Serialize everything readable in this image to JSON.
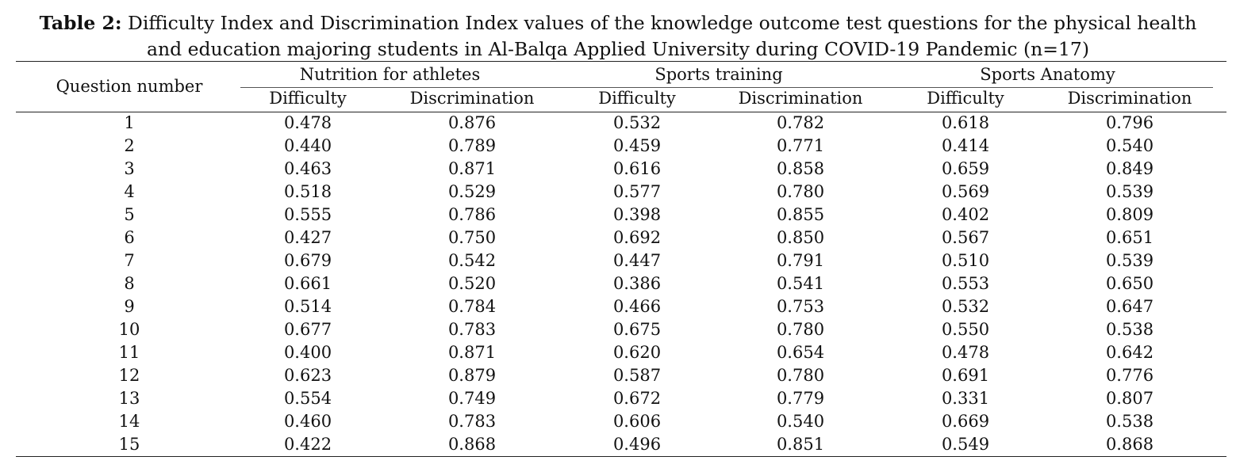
{
  "caption": {
    "label": "Table 2:",
    "line1": " Difficulty Index and Discrimination Index values of the knowledge outcome test questions for the physical health",
    "line2": "and education majoring students in Al-Balqa Applied University during COVID-19 Pandemic (n=17)"
  },
  "table": {
    "row_header": "Question number",
    "groups": [
      {
        "name": "Nutrition for athletes",
        "sub": [
          "Difficulty",
          "Discrimination"
        ]
      },
      {
        "name": "Sports training",
        "sub": [
          "Difficulty",
          "Discrimination"
        ]
      },
      {
        "name": "Sports Anatomy",
        "sub": [
          "Difficulty",
          "Discrimination"
        ]
      }
    ],
    "rows": [
      [
        "1",
        "0.478",
        "0.876",
        "0.532",
        "0.782",
        "0.618",
        "0.796"
      ],
      [
        "2",
        "0.440",
        "0.789",
        "0.459",
        "0.771",
        "0.414",
        "0.540"
      ],
      [
        "3",
        "0.463",
        "0.871",
        "0.616",
        "0.858",
        "0.659",
        "0.849"
      ],
      [
        "4",
        "0.518",
        "0.529",
        "0.577",
        "0.780",
        "0.569",
        "0.539"
      ],
      [
        "5",
        "0.555",
        "0.786",
        "0.398",
        "0.855",
        "0.402",
        "0.809"
      ],
      [
        "6",
        "0.427",
        "0.750",
        "0.692",
        "0.850",
        "0.567",
        "0.651"
      ],
      [
        "7",
        "0.679",
        "0.542",
        "0.447",
        "0.791",
        "0.510",
        "0.539"
      ],
      [
        "8",
        "0.661",
        "0.520",
        "0.386",
        "0.541",
        "0.553",
        "0.650"
      ],
      [
        "9",
        "0.514",
        "0.784",
        "0.466",
        "0.753",
        "0.532",
        "0.647"
      ],
      [
        "10",
        "0.677",
        "0.783",
        "0.675",
        "0.780",
        "0.550",
        "0.538"
      ],
      [
        "11",
        "0.400",
        "0.871",
        "0.620",
        "0.654",
        "0.478",
        "0.642"
      ],
      [
        "12",
        "0.623",
        "0.879",
        "0.587",
        "0.780",
        "0.691",
        "0.776"
      ],
      [
        "13",
        "0.554",
        "0.749",
        "0.672",
        "0.779",
        "0.331",
        "0.807"
      ],
      [
        "14",
        "0.460",
        "0.783",
        "0.606",
        "0.540",
        "0.669",
        "0.538"
      ],
      [
        "15",
        "0.422",
        "0.868",
        "0.496",
        "0.851",
        "0.549",
        "0.868"
      ]
    ]
  }
}
